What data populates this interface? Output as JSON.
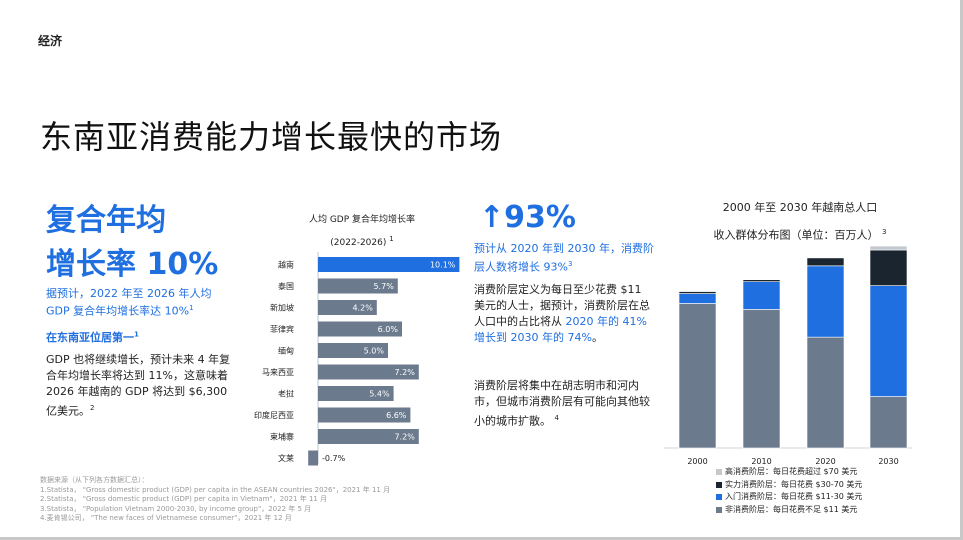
{
  "section": "经济",
  "title": "东南亚消费能力增长最快的市场",
  "left": {
    "headline_line1": "复合年均",
    "headline_line2": "增长率 10%",
    "desc": "据预计，2022 年至 2026 年人均 GDP 复合年均增长率达 10%",
    "desc_ref": "1",
    "rank_title": "在东南亚位居第一",
    "rank_ref": "1",
    "rank_text": "GDP 也将继续增长，预计未来 4 年复合年均增长率将达到 11%，这意味着 2026 年越南的 GDP 将达到 $6,300 亿美元。",
    "rank_text_ref": "2"
  },
  "sources": [
    "数据来源（从下列各方数据汇总）：",
    "1.Statista， \"Gross domestic product (GDP) per capita in the ASEAN countries 2026\"，2021 年 11 月",
    "2.Statista， \"Gross domestic product (GDP) per capita in Vietnam\"，2021 年 11 月",
    "3.Statista， \"Population Vietnam 2000-2030, by income group\"，2022 年 5 月",
    "4.麦肯锡公司， \"The new faces of Vietnamese consumer\"，2021 年 12 月"
  ],
  "middle": {
    "big_number": "↑93%",
    "forecast": "预计从 2020 年到 2030 年，消费阶层人数将增长 93%",
    "forecast_ref": "3",
    "def_part1": "消费阶层定义为每日至少花费 $11 美元的人士，据预计，消费阶层在总人口中的占比将从 ",
    "def_highlight": "2020 年的 41% 增长到 2030 年的 74%",
    "def_part2": "。",
    "city_text": "消费阶层将集中在胡志明市和河内市，但城市消费阶层有可能向其他较小的城市扩散。",
    "city_ref": "4"
  },
  "chart_data": [
    {
      "type": "bar",
      "orientation": "horizontal",
      "title": "人均 GDP 复合年均增长率",
      "subtitle": "(2022-2026)",
      "title_ref": "1",
      "categories": [
        "越南",
        "泰国",
        "新加坡",
        "菲律宾",
        "缅甸",
        "马来西亚",
        "老挝",
        "印度尼西亚",
        "柬埔寨",
        "文莱"
      ],
      "values": [
        10.1,
        5.7,
        4.2,
        6.0,
        5.0,
        7.2,
        5.4,
        6.6,
        7.2,
        -0.7
      ],
      "labels": [
        "10.1%",
        "5.7%",
        "4.2%",
        "6.0%",
        "5.0%",
        "7.2%",
        "5.4%",
        "6.6%",
        "7.2%",
        "-0.7%"
      ],
      "highlight": "越南",
      "colors": {
        "highlight": "#1f6fe0",
        "default": "#6b7a8d"
      }
    },
    {
      "type": "bar",
      "stacked": true,
      "title": "2000 年至 2030 年越南总人口",
      "subtitle": "收入群体分布图（单位：百万人）",
      "title_ref": "3",
      "categories": [
        "2000",
        "2010",
        "2020",
        "2030"
      ],
      "ylim": [
        0,
        100
      ],
      "series": [
        {
          "name": "非消费阶层：每日花费不足 $11 美元",
          "color": "#6b7a8d",
          "values": [
            73,
            70,
            56,
            26
          ]
        },
        {
          "name": "入门消费阶层：每日花费 $11-30 美元",
          "color": "#1f6fe0",
          "values": [
            5,
            14,
            36,
            56
          ]
        },
        {
          "name": "实力消费阶层：每日花费 $30-70 美元",
          "color": "#1a2530",
          "values": [
            1,
            1,
            4,
            18
          ]
        },
        {
          "name": "高消费阶层：每日花费超过 $70 美元",
          "color": "#c4c9cf",
          "values": [
            0,
            0,
            0,
            2
          ]
        }
      ]
    }
  ]
}
